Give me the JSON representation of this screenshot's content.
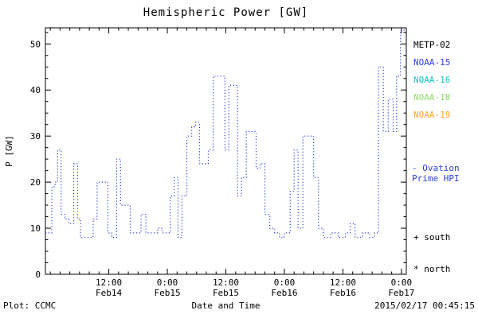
{
  "title": "Hemispheric Power [GW]",
  "ui": {
    "plot_credit": "Plot: CCMC",
    "timestamp": "2015/02/17 00:45:15",
    "south_marker": "+ south",
    "north_marker": "* north",
    "model_line1": "- Ovation",
    "model_line2": "Prime HPI",
    "model_color": "#2b3fd6"
  },
  "legend": [
    {
      "label": "METP-02",
      "color": "#000000"
    },
    {
      "label": "NOAA-15",
      "color": "#2b3fd6"
    },
    {
      "label": "NOAA-16",
      "color": "#17c3c3"
    },
    {
      "label": "NOAA-18",
      "color": "#8fd96b"
    },
    {
      "label": "NOAA-19",
      "color": "#ffa033"
    }
  ],
  "chart_data": {
    "type": "line",
    "title": "Hemispheric Power [GW]",
    "xlabel": "Date and Time",
    "ylabel": "P [GW]",
    "ylim": [
      0,
      53.5
    ],
    "y_ticks": [
      0,
      10,
      20,
      30,
      40,
      50
    ],
    "y_minor_step": 2.5,
    "x_domain_hours": [
      -1,
      73
    ],
    "x_minor_step_hours": 2,
    "x_ticks": [
      {
        "hour": 12,
        "time": "12:00",
        "date": "Feb14"
      },
      {
        "hour": 24,
        "time": "0:00",
        "date": "Feb15"
      },
      {
        "hour": 36,
        "time": "12:00",
        "date": "Feb15"
      },
      {
        "hour": 48,
        "time": "0:00",
        "date": "Feb16"
      },
      {
        "hour": 60,
        "time": "12:00",
        "date": "Feb16"
      },
      {
        "hour": 72,
        "time": "0:00",
        "date": "Feb17"
      }
    ],
    "grid": false,
    "legend_position": "right",
    "series": [
      {
        "name": "Ovation Prime HPI",
        "color": "#2b3fd6",
        "style": "dotted-step",
        "units": "GW",
        "x_units": "hours since 2015-02-14 00:00",
        "points": [
          [
            -1,
            9
          ],
          [
            0.3,
            19
          ],
          [
            1,
            20
          ],
          [
            1.5,
            27
          ],
          [
            2.2,
            13
          ],
          [
            3,
            12
          ],
          [
            3.8,
            11
          ],
          [
            4.8,
            24
          ],
          [
            5.6,
            12
          ],
          [
            6.2,
            8
          ],
          [
            7.8,
            8
          ],
          [
            8.8,
            12
          ],
          [
            9.6,
            20
          ],
          [
            11,
            20
          ],
          [
            11.8,
            9
          ],
          [
            12.6,
            8
          ],
          [
            13.6,
            25
          ],
          [
            14.4,
            15
          ],
          [
            15.6,
            15
          ],
          [
            16.4,
            9
          ],
          [
            17.6,
            9
          ],
          [
            18.6,
            13
          ],
          [
            19.6,
            9
          ],
          [
            21,
            9
          ],
          [
            22,
            10
          ],
          [
            23,
            9
          ],
          [
            24.6,
            17
          ],
          [
            25.4,
            21
          ],
          [
            26.2,
            8
          ],
          [
            27,
            17
          ],
          [
            28,
            30
          ],
          [
            29,
            32
          ],
          [
            29.8,
            33
          ],
          [
            30.6,
            24
          ],
          [
            31.6,
            24
          ],
          [
            32.4,
            27
          ],
          [
            33.4,
            43
          ],
          [
            35,
            43
          ],
          [
            35.8,
            27
          ],
          [
            36.6,
            41
          ],
          [
            37.8,
            41
          ],
          [
            38.4,
            17
          ],
          [
            39.2,
            21
          ],
          [
            40.2,
            31
          ],
          [
            41.4,
            31
          ],
          [
            42.2,
            23
          ],
          [
            43,
            24
          ],
          [
            44,
            13
          ],
          [
            45,
            10
          ],
          [
            46,
            9
          ],
          [
            47,
            8
          ],
          [
            48,
            9
          ],
          [
            49.2,
            18
          ],
          [
            50,
            27
          ],
          [
            50.8,
            10
          ],
          [
            51.8,
            30
          ],
          [
            53,
            30
          ],
          [
            54,
            21
          ],
          [
            55,
            10
          ],
          [
            56,
            8
          ],
          [
            57.5,
            9
          ],
          [
            59,
            8
          ],
          [
            60.5,
            9
          ],
          [
            61.5,
            11
          ],
          [
            62.5,
            8
          ],
          [
            64,
            9
          ],
          [
            65.5,
            8
          ],
          [
            66.5,
            9
          ],
          [
            67.3,
            45
          ],
          [
            68.3,
            31
          ],
          [
            69.3,
            38
          ],
          [
            70.3,
            31
          ],
          [
            71,
            43
          ],
          [
            71.8,
            53
          ]
        ]
      }
    ]
  }
}
